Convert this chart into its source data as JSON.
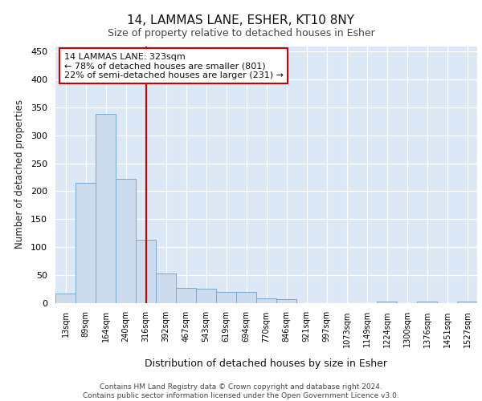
{
  "title1": "14, LAMMAS LANE, ESHER, KT10 8NY",
  "title2": "Size of property relative to detached houses in Esher",
  "xlabel": "Distribution of detached houses by size in Esher",
  "ylabel": "Number of detached properties",
  "bar_labels": [
    "13sqm",
    "89sqm",
    "164sqm",
    "240sqm",
    "316sqm",
    "392sqm",
    "467sqm",
    "543sqm",
    "619sqm",
    "694sqm",
    "770sqm",
    "846sqm",
    "921sqm",
    "997sqm",
    "1073sqm",
    "1149sqm",
    "1224sqm",
    "1300sqm",
    "1376sqm",
    "1451sqm",
    "1527sqm"
  ],
  "bar_values": [
    16,
    215,
    338,
    222,
    113,
    53,
    26,
    25,
    20,
    19,
    8,
    6,
    0,
    0,
    0,
    0,
    2,
    0,
    2,
    0,
    2
  ],
  "bar_color": "#ccdcee",
  "bar_edge_color": "#7aa8cc",
  "vline_x": 4,
  "vline_color": "#cc0000",
  "annotation_text": "14 LAMMAS LANE: 323sqm\n← 78% of detached houses are smaller (801)\n22% of semi-detached houses are larger (231) →",
  "annotation_box_color": "#ffffff",
  "annotation_box_edge": "#cc0000",
  "ylim": [
    0,
    460
  ],
  "yticks": [
    0,
    50,
    100,
    150,
    200,
    250,
    300,
    350,
    400,
    450
  ],
  "footer": "Contains HM Land Registry data © Crown copyright and database right 2024.\nContains public sector information licensed under the Open Government Licence v3.0.",
  "bg_color": "#ffffff",
  "plot_bg_color": "#dce8f5",
  "grid_color": "#ffffff"
}
